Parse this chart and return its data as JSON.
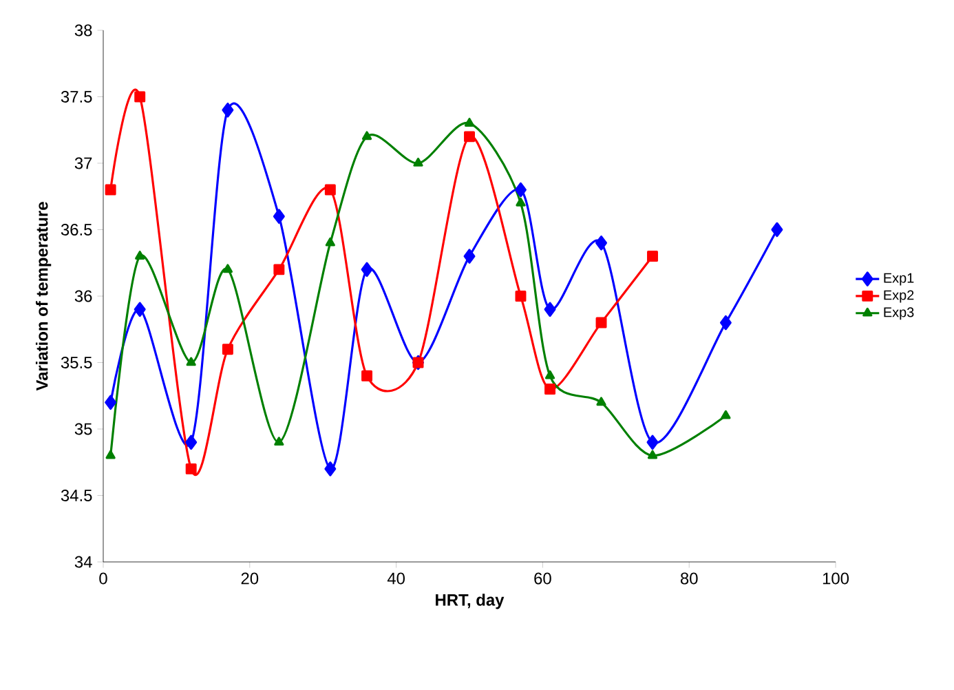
{
  "chart_data": {
    "type": "line",
    "xlabel": "HRT, day",
    "ylabel": "Variation of temperature",
    "xlim": [
      0,
      100
    ],
    "xticks": [
      0,
      20,
      40,
      60,
      80,
      100
    ],
    "ylim": [
      34,
      38
    ],
    "yticks": [
      34,
      34.5,
      35,
      35.5,
      36,
      36.5,
      37,
      37.5,
      38
    ],
    "grid": false,
    "legend": "right",
    "line_style": "solid",
    "series": [
      {
        "name": "Exp1",
        "color": "#0000ff",
        "marker": "diamond",
        "x": [
          1,
          5,
          12,
          17,
          24,
          31,
          36,
          43,
          50,
          57,
          61,
          68,
          75,
          85,
          92
        ],
        "values": [
          35.2,
          35.9,
          34.9,
          37.4,
          36.6,
          34.7,
          36.2,
          35.5,
          36.3,
          36.8,
          35.9,
          36.4,
          34.9,
          35.8,
          36.5
        ]
      },
      {
        "name": "Exp2",
        "color": "#ff0000",
        "marker": "square",
        "x": [
          1,
          5,
          12,
          17,
          24,
          31,
          36,
          43,
          50,
          57,
          61,
          68,
          75
        ],
        "values": [
          36.8,
          37.5,
          34.7,
          35.6,
          36.2,
          36.8,
          35.4,
          35.5,
          37.2,
          36.0,
          35.3,
          35.8,
          36.3
        ]
      },
      {
        "name": "Exp3",
        "color": "#008000",
        "marker": "triangle",
        "x": [
          1,
          5,
          12,
          17,
          24,
          31,
          36,
          43,
          50,
          57,
          61,
          68,
          75,
          85
        ],
        "values": [
          34.8,
          36.3,
          35.5,
          36.2,
          34.9,
          36.4,
          37.2,
          37.0,
          37.3,
          36.7,
          35.4,
          35.2,
          34.8,
          35.1
        ]
      }
    ]
  }
}
